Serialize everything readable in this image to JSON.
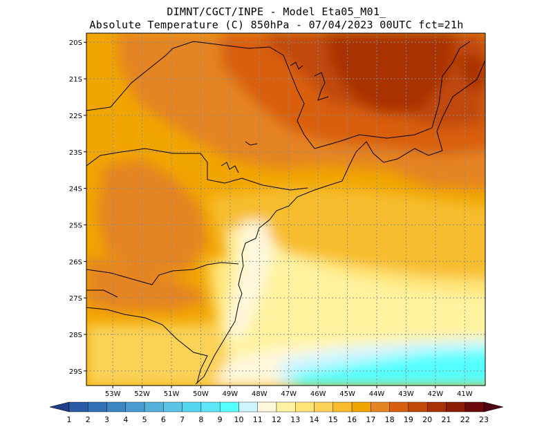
{
  "header": {
    "line1": "DIMNT/CGCT/INPE -  Model Eta05_M01_",
    "line2": "Absolute Temperature (C) 850hPa -  07/04/2023 00UTC fct=21h"
  },
  "map": {
    "lon_range": [
      -53.9,
      -40.3
    ],
    "lat_range": [
      -29.4,
      -19.75
    ],
    "lat_ticks": [
      {
        "value": -20,
        "label": "20S"
      },
      {
        "value": -21,
        "label": "21S"
      },
      {
        "value": -22,
        "label": "22S"
      },
      {
        "value": -23,
        "label": "23S"
      },
      {
        "value": -24,
        "label": "24S"
      },
      {
        "value": -25,
        "label": "25S"
      },
      {
        "value": -26,
        "label": "26S"
      },
      {
        "value": -27,
        "label": "27S"
      },
      {
        "value": -28,
        "label": "28S"
      },
      {
        "value": -29,
        "label": "29S"
      }
    ],
    "lon_ticks": [
      {
        "value": -53,
        "label": "53W"
      },
      {
        "value": -52,
        "label": "52W"
      },
      {
        "value": -51,
        "label": "51W"
      },
      {
        "value": -50,
        "label": "50W"
      },
      {
        "value": -49,
        "label": "49W"
      },
      {
        "value": -48,
        "label": "48W"
      },
      {
        "value": -47,
        "label": "47W"
      },
      {
        "value": -46,
        "label": "46W"
      },
      {
        "value": -45,
        "label": "45W"
      },
      {
        "value": -44,
        "label": "44W"
      },
      {
        "value": -43,
        "label": "43W"
      },
      {
        "value": -42,
        "label": "42W"
      },
      {
        "value": -41,
        "label": "41W"
      }
    ],
    "grid": true
  },
  "colorbar": {
    "labels": [
      "1",
      "2",
      "3",
      "4",
      "5",
      "6",
      "7",
      "8",
      "9",
      "10",
      "11",
      "12",
      "13",
      "14",
      "15",
      "16",
      "17",
      "18",
      "19",
      "20",
      "21",
      "22",
      "23"
    ],
    "colors": [
      "#1f3f8a",
      "#2a5aa6",
      "#3372b5",
      "#3a86c2",
      "#4a9bd0",
      "#55b0dc",
      "#5cc4e6",
      "#55d6ef",
      "#5ce8f8",
      "#55ffff",
      "#ccf5ff",
      "#fff7dc",
      "#fff3a0",
      "#ffe578",
      "#fbd257",
      "#f7bd2f",
      "#f1a500",
      "#e58423",
      "#d95f0e",
      "#c14a08",
      "#a83206",
      "#8b1d05",
      "#6a0a0a",
      "#500010"
    ]
  }
}
